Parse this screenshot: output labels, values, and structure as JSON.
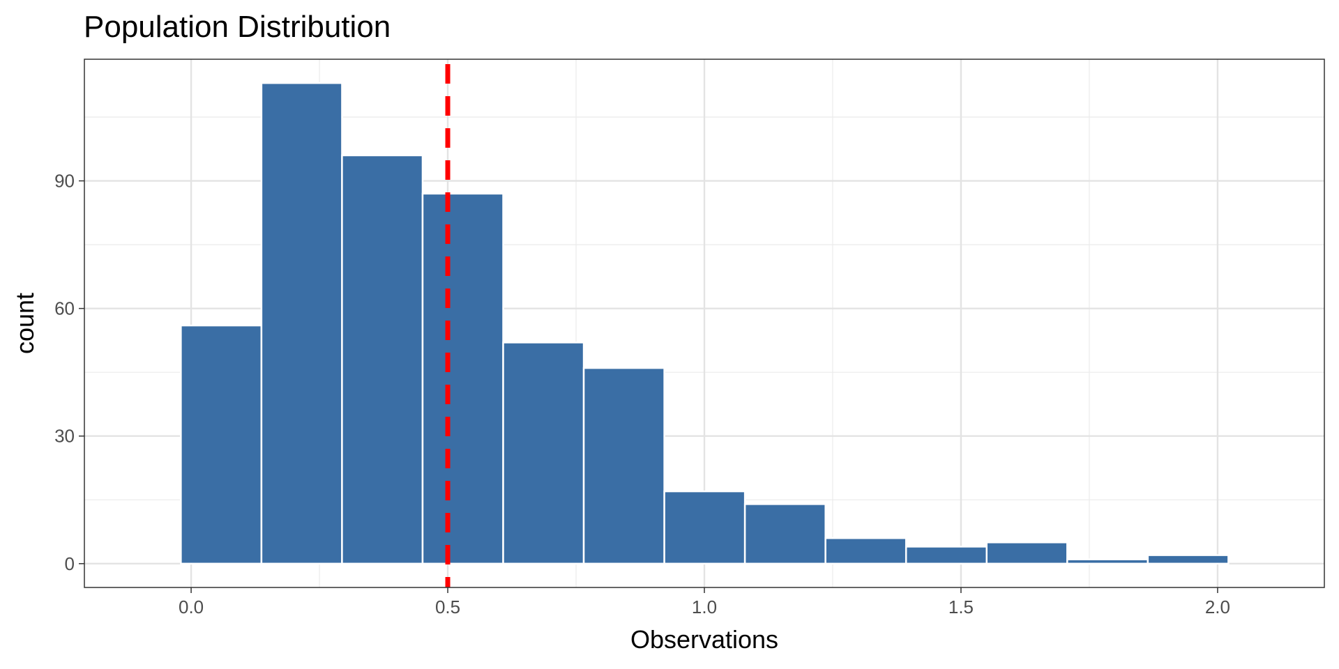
{
  "chart_data": {
    "type": "bar",
    "title": "Population Distribution",
    "xlabel": "Observations",
    "ylabel": "count",
    "xlim": [
      -0.208,
      2.208
    ],
    "ylim": [
      -5.6,
      118.6
    ],
    "x_ticks": [
      0.0,
      0.5,
      1.0,
      1.5,
      2.0
    ],
    "x_tick_labels": [
      "0.0",
      "0.5",
      "1.0",
      "1.5",
      "2.0"
    ],
    "y_ticks": [
      0,
      30,
      60,
      90
    ],
    "y_tick_labels": [
      "0",
      "30",
      "60",
      "90"
    ],
    "bin_width": 0.157,
    "bins": [
      {
        "x0": -0.02,
        "x1": 0.137,
        "count": 56
      },
      {
        "x0": 0.137,
        "x1": 0.294,
        "count": 113
      },
      {
        "x0": 0.294,
        "x1": 0.451,
        "count": 96
      },
      {
        "x0": 0.451,
        "x1": 0.608,
        "count": 87
      },
      {
        "x0": 0.608,
        "x1": 0.765,
        "count": 52
      },
      {
        "x0": 0.765,
        "x1": 0.922,
        "count": 46
      },
      {
        "x0": 0.922,
        "x1": 1.079,
        "count": 17
      },
      {
        "x0": 1.079,
        "x1": 1.236,
        "count": 14
      },
      {
        "x0": 1.236,
        "x1": 1.393,
        "count": 6
      },
      {
        "x0": 1.393,
        "x1": 1.55,
        "count": 4
      },
      {
        "x0": 1.55,
        "x1": 1.707,
        "count": 5
      },
      {
        "x0": 1.707,
        "x1": 1.864,
        "count": 1
      },
      {
        "x0": 1.864,
        "x1": 2.021,
        "count": 2
      }
    ],
    "reference_line": {
      "x": 0.5,
      "style": "dashed",
      "color": "#ff0000"
    },
    "bar_color": "#3a6ea5",
    "grid": true,
    "legend": "none"
  }
}
